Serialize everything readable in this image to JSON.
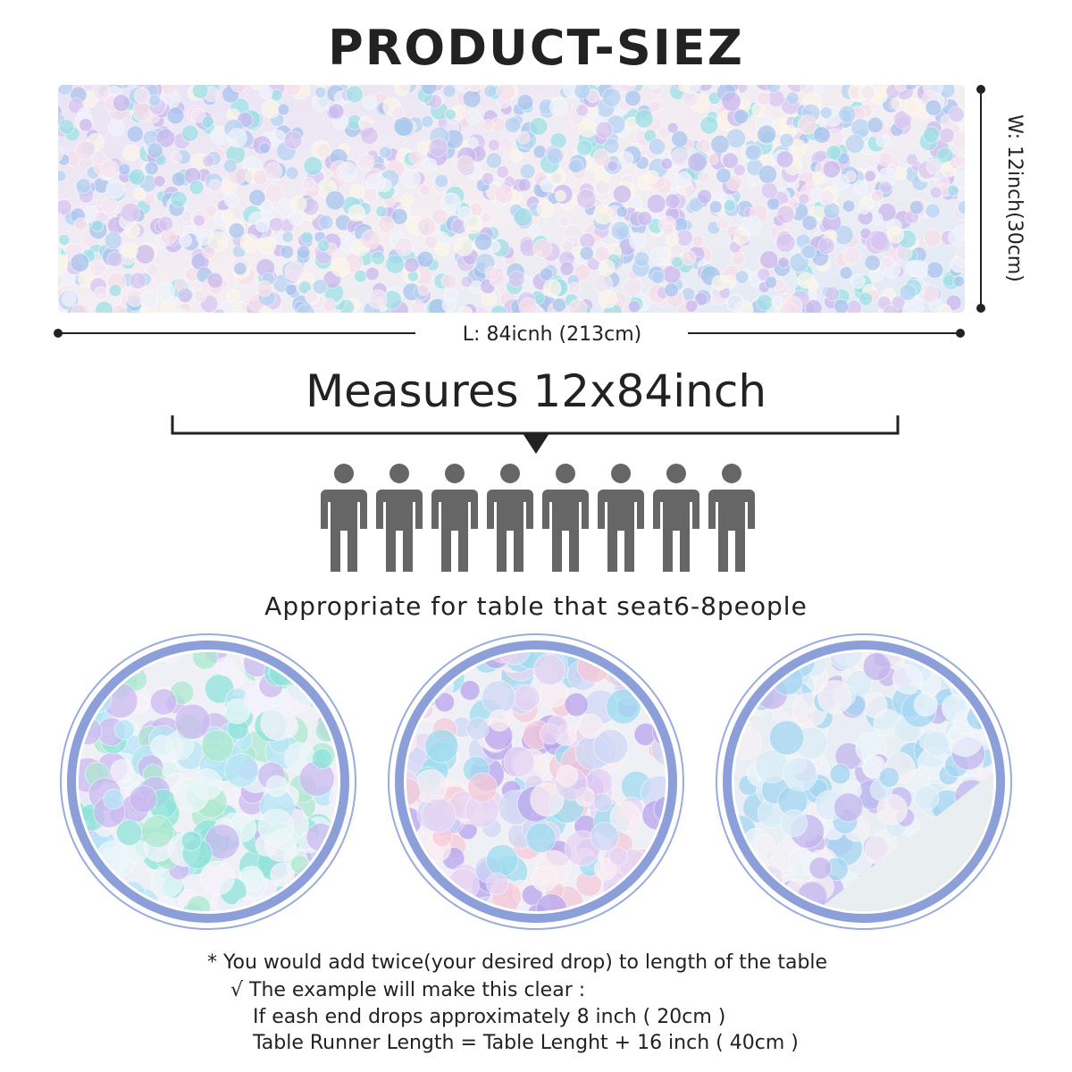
{
  "title": "PRODUCT-SIEZ",
  "width_label": "W: 12inch(30cm)",
  "length_label": "L: 84icnh (213cm)",
  "measures": "Measures 12x84inch",
  "seating": "Appropriate for table that seat6-8people",
  "notes": [
    "* You would add twice(your desired drop) to length of the table",
    "√ The example will make this clear :",
    "If eash end drops approximately 8 inch ( 20cm )",
    "Table Runner Length = Table Lenght + 16 inch ( 40cm )"
  ]
}
